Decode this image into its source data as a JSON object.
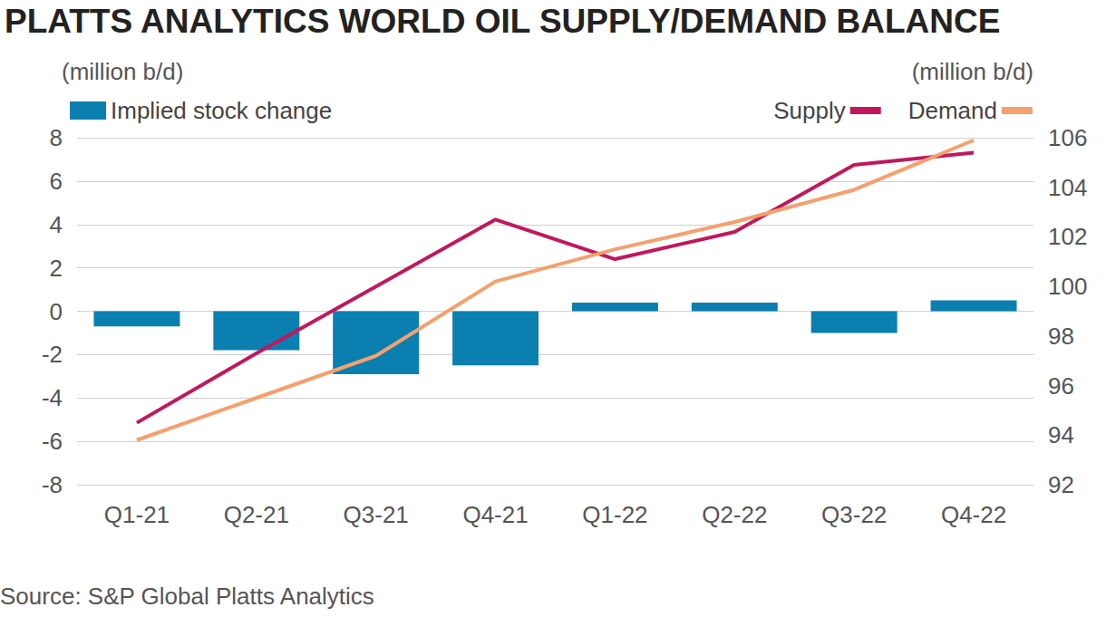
{
  "chart_data": {
    "type": "bar",
    "title": "PLATTS ANALYTICS WORLD OIL SUPPLY/DEMAND BALANCE",
    "ylabel": "(million b/d)",
    "y2label": "(million b/d)",
    "source": "Source: S&P Global Platts Analytics",
    "categories": [
      "Q1-21",
      "Q2-21",
      "Q3-21",
      "Q4-21",
      "Q1-22",
      "Q2-22",
      "Q3-22",
      "Q4-22"
    ],
    "series": [
      {
        "name": "Implied stock change",
        "type": "bar",
        "color": "#0a7fb0",
        "values": [
          -0.7,
          -1.8,
          -2.9,
          -2.5,
          0.4,
          0.4,
          -1.0,
          0.5
        ]
      },
      {
        "name": "Supply",
        "type": "line",
        "axis": "y2",
        "color": "#c2185b",
        "values": [
          94.5,
          97.3,
          100.0,
          102.7,
          101.1,
          102.2,
          104.9,
          105.4
        ]
      },
      {
        "name": "Demand",
        "type": "line",
        "axis": "y2",
        "color": "#f5a06e",
        "values": [
          93.8,
          95.5,
          97.2,
          100.2,
          101.5,
          102.6,
          103.9,
          105.9
        ]
      }
    ],
    "ylim": [
      -8,
      8
    ],
    "yticks": [
      -8,
      -6,
      -4,
      -2,
      0,
      2,
      4,
      6,
      8
    ],
    "y2lim": [
      92,
      106
    ],
    "y2ticks": [
      92,
      94,
      96,
      98,
      100,
      102,
      104,
      106
    ],
    "grid": true,
    "legend": "top"
  }
}
